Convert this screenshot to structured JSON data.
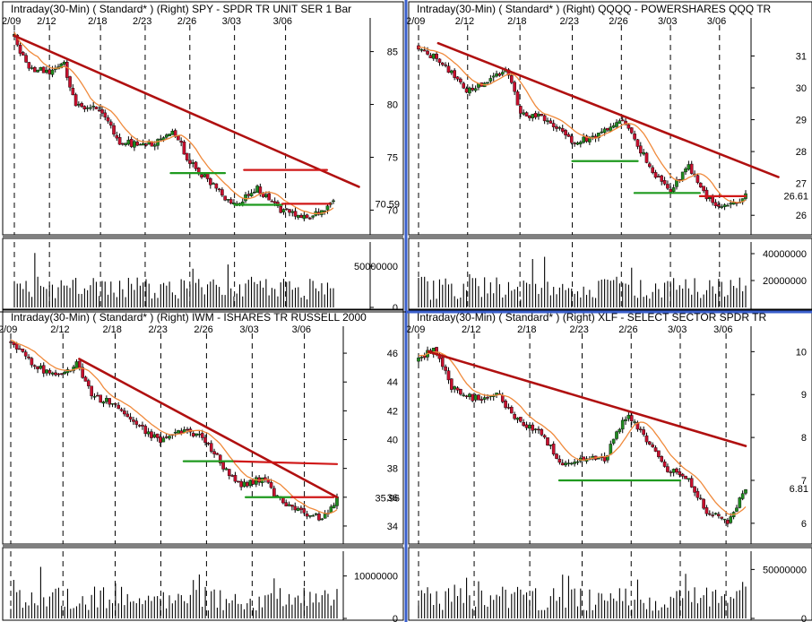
{
  "colors": {
    "up": "#1f8a1f",
    "down": "#c8102e",
    "wick": "#000000",
    "ma": "#f08a3c",
    "trendline": "#b01010",
    "resistance": "#d01818",
    "support": "#1f9a1f",
    "volume": "#000000",
    "frame_blue": "#3a5fcd"
  },
  "chart_data": [
    {
      "id": "spy",
      "type": "candlestick",
      "title": "Intraday(30-Min) ( Standard* )  (Right)  SPY - SPDR TR UNIT SER 1  Bar",
      "date_labels": [
        "2/09",
        "2/12",
        "2/18",
        "2/23",
        "2/26",
        "3/03",
        "3/06"
      ],
      "date_positions": [
        0.0,
        0.11,
        0.27,
        0.41,
        0.55,
        0.69,
        0.85
      ],
      "price_ticks": [
        "85",
        "80",
        "75",
        "70"
      ],
      "price_tick_values": [
        85,
        80,
        75,
        70
      ],
      "ylim": [
        68.0,
        87.0
      ],
      "last_price": "70.59",
      "volume_ticks": [
        "50000000",
        "0"
      ],
      "volume_tick_values": [
        50000000,
        0
      ],
      "volume_max": 75000000,
      "anchors": [
        [
          0,
          86.5
        ],
        [
          0.04,
          83.5
        ],
        [
          0.11,
          83.0
        ],
        [
          0.155,
          83.8
        ],
        [
          0.19,
          80.0
        ],
        [
          0.27,
          79.5
        ],
        [
          0.33,
          76.5
        ],
        [
          0.41,
          76.0
        ],
        [
          0.5,
          77.5
        ],
        [
          0.55,
          74.5
        ],
        [
          0.62,
          72.3
        ],
        [
          0.69,
          70.5
        ],
        [
          0.76,
          72.0
        ],
        [
          0.82,
          70.3
        ],
        [
          0.9,
          69.2
        ],
        [
          0.96,
          69.8
        ],
        [
          1.0,
          70.6
        ]
      ],
      "lines": [
        {
          "kind": "trendline",
          "x1": 0.0,
          "y1": 86.5,
          "x2": 1.08,
          "y2": 72.2
        },
        {
          "kind": "resistance",
          "x1": 0.72,
          "y1": 73.8,
          "x2": 0.98,
          "y2": 73.8
        },
        {
          "kind": "support",
          "x1": 0.49,
          "y1": 73.5,
          "x2": 0.66,
          "y2": 73.5
        },
        {
          "kind": "support",
          "x1": 0.69,
          "y1": 70.5,
          "x2": 0.84,
          "y2": 70.5
        },
        {
          "kind": "resistance",
          "x1": 0.84,
          "y1": 70.6,
          "x2": 0.99,
          "y2": 70.6
        }
      ]
    },
    {
      "id": "qqqq",
      "type": "candlestick",
      "title": "Intraday(30-Min) ( Standard* )  (Right)  QQQQ - POWERSHARES QQQ TR",
      "date_labels": [
        "2/09",
        "2/12",
        "2/18",
        "2/23",
        "2/26",
        "3/03",
        "3/06"
      ],
      "date_positions": [
        0.0,
        0.15,
        0.31,
        0.47,
        0.62,
        0.77,
        0.92
      ],
      "price_ticks": [
        "31",
        "30",
        "29",
        "28",
        "27",
        "26"
      ],
      "price_tick_values": [
        31,
        30,
        29,
        28,
        27,
        26
      ],
      "ylim": [
        25.5,
        31.8
      ],
      "last_price": "26.61",
      "volume_ticks": [
        "40000000",
        "20000000"
      ],
      "volume_tick_values": [
        40000000,
        20000000
      ],
      "volume_max": 46000000,
      "anchors": [
        [
          0,
          31.3
        ],
        [
          0.08,
          30.7
        ],
        [
          0.15,
          29.9
        ],
        [
          0.22,
          30.3
        ],
        [
          0.27,
          30.6
        ],
        [
          0.31,
          29.2
        ],
        [
          0.38,
          29.1
        ],
        [
          0.47,
          28.3
        ],
        [
          0.54,
          28.4
        ],
        [
          0.62,
          29.0
        ],
        [
          0.67,
          28.2
        ],
        [
          0.72,
          27.3
        ],
        [
          0.77,
          26.7
        ],
        [
          0.82,
          27.6
        ],
        [
          0.87,
          26.7
        ],
        [
          0.93,
          26.2
        ],
        [
          1.0,
          26.6
        ]
      ],
      "lines": [
        {
          "kind": "trendline",
          "x1": 0.06,
          "y1": 31.4,
          "x2": 1.1,
          "y2": 27.2
        },
        {
          "kind": "support",
          "x1": 0.47,
          "y1": 27.7,
          "x2": 0.67,
          "y2": 27.7
        },
        {
          "kind": "support",
          "x1": 0.66,
          "y1": 26.7,
          "x2": 0.86,
          "y2": 26.7
        },
        {
          "kind": "resistance",
          "x1": 0.86,
          "y1": 26.6,
          "x2": 1.0,
          "y2": 26.6
        }
      ]
    },
    {
      "id": "iwm",
      "type": "candlestick",
      "title": "Intraday(30-Min) ( Standard* )  (Right)  IWM - ISHARES TR RUSSELL 2000",
      "date_labels": [
        "2/09",
        "2/12",
        "2/18",
        "2/23",
        "2/26",
        "3/03",
        "3/06"
      ],
      "date_positions": [
        0.0,
        0.16,
        0.32,
        0.46,
        0.6,
        0.74,
        0.9
      ],
      "price_ticks": [
        "46",
        "44",
        "42",
        "40",
        "38",
        "36",
        "34"
      ],
      "price_tick_values": [
        46,
        44,
        42,
        40,
        38,
        36,
        34
      ],
      "ylim": [
        33.0,
        47.0
      ],
      "last_price": "35.96",
      "volume_ticks": [
        "10000000",
        "0"
      ],
      "volume_tick_values": [
        10000000,
        0
      ],
      "volume_max": 15000000,
      "anchors": [
        [
          0,
          46.8
        ],
        [
          0.08,
          45.0
        ],
        [
          0.16,
          44.3
        ],
        [
          0.2,
          45.5
        ],
        [
          0.25,
          43.0
        ],
        [
          0.32,
          42.5
        ],
        [
          0.4,
          40.8
        ],
        [
          0.46,
          39.8
        ],
        [
          0.52,
          40.5
        ],
        [
          0.58,
          40.3
        ],
        [
          0.64,
          38.5
        ],
        [
          0.7,
          36.8
        ],
        [
          0.78,
          37.3
        ],
        [
          0.82,
          35.8
        ],
        [
          0.9,
          34.8
        ],
        [
          0.96,
          34.5
        ],
        [
          1.0,
          35.9
        ]
      ],
      "lines": [
        {
          "kind": "trendline",
          "x1": 0.21,
          "y1": 45.6,
          "x2": 1.0,
          "y2": 36.0
        },
        {
          "kind": "resistance",
          "x1": 0.68,
          "y1": 38.5,
          "x2": 1.0,
          "y2": 38.3
        },
        {
          "kind": "support",
          "x1": 0.53,
          "y1": 38.5,
          "x2": 0.68,
          "y2": 38.5
        },
        {
          "kind": "support",
          "x1": 0.72,
          "y1": 36.0,
          "x2": 0.86,
          "y2": 36.0
        },
        {
          "kind": "resistance",
          "x1": 0.86,
          "y1": 36.0,
          "x2": 0.99,
          "y2": 36.0
        }
      ]
    },
    {
      "id": "xlf",
      "type": "candlestick",
      "title": "Intraday(30-Min) ( Standard* )  (Right)  XLF - SELECT SECTOR SPDR TR",
      "date_labels": [
        "2/09",
        "2/12",
        "2/18",
        "2/23",
        "2/26",
        "3/03",
        "3/06"
      ],
      "date_positions": [
        0.0,
        0.17,
        0.34,
        0.5,
        0.65,
        0.8,
        0.94
      ],
      "price_ticks": [
        "10",
        "9",
        "8",
        "7",
        "6"
      ],
      "price_tick_values": [
        10,
        9,
        8,
        7,
        6
      ],
      "ylim": [
        5.6,
        10.3
      ],
      "last_price": "6.81",
      "volume_ticks": [
        "50000000",
        "0"
      ],
      "volume_tick_values": [
        50000000,
        0
      ],
      "volume_max": 65000000,
      "anchors": [
        [
          0,
          9.8
        ],
        [
          0.05,
          10.1
        ],
        [
          0.1,
          9.2
        ],
        [
          0.17,
          8.9
        ],
        [
          0.24,
          9.0
        ],
        [
          0.3,
          8.4
        ],
        [
          0.37,
          8.1
        ],
        [
          0.44,
          7.4
        ],
        [
          0.5,
          7.5
        ],
        [
          0.57,
          7.5
        ],
        [
          0.6,
          8.1
        ],
        [
          0.64,
          8.5
        ],
        [
          0.7,
          7.9
        ],
        [
          0.75,
          7.3
        ],
        [
          0.82,
          7.1
        ],
        [
          0.88,
          6.3
        ],
        [
          0.94,
          6.0
        ],
        [
          1.0,
          6.8
        ]
      ],
      "lines": [
        {
          "kind": "trendline",
          "x1": 0.03,
          "y1": 10.0,
          "x2": 1.0,
          "y2": 7.8
        },
        {
          "kind": "support",
          "x1": 0.43,
          "y1": 7.0,
          "x2": 0.8,
          "y2": 7.0
        }
      ]
    }
  ]
}
